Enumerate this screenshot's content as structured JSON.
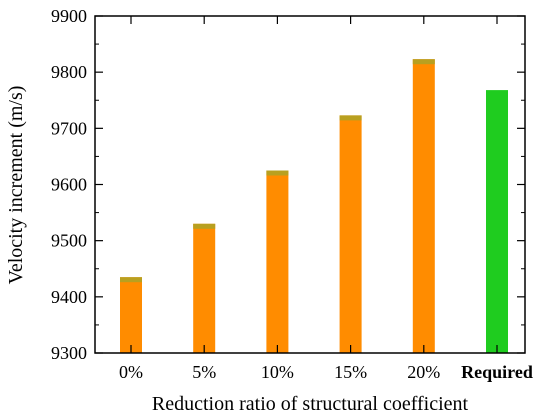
{
  "chart_data": {
    "type": "bar",
    "title": "",
    "xlabel": "Reduction ratio of structural coefficient",
    "ylabel": "Velocity increment (m/s)",
    "categories": [
      "0%",
      "5%",
      "10%",
      "15%",
      "20%",
      "Required"
    ],
    "bold_categories": [
      "Required"
    ],
    "values": [
      9435,
      9530,
      9625,
      9723,
      9823,
      9768
    ],
    "ylim": [
      9300,
      9900
    ],
    "yticks": [
      9300,
      9400,
      9500,
      9600,
      9700,
      9800,
      9900
    ],
    "grid": false,
    "legend": "none",
    "colors": {
      "bar": "#ff8c00",
      "bar_top_accent": "#b8a020",
      "required_bar": "#1fcc1f",
      "axis": "#000000"
    }
  }
}
